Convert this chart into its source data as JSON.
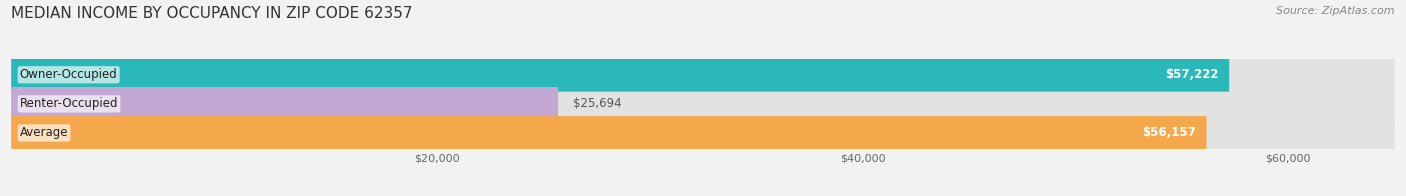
{
  "title": "MEDIAN INCOME BY OCCUPANCY IN ZIP CODE 62357",
  "source": "Source: ZipAtlas.com",
  "categories": [
    "Owner-Occupied",
    "Renter-Occupied",
    "Average"
  ],
  "values": [
    57222,
    25694,
    56157
  ],
  "bar_colors": [
    "#2ab8b8",
    "#c4a8d4",
    "#f5a84b"
  ],
  "value_labels": [
    "$57,222",
    "$25,694",
    "$56,157"
  ],
  "xlim": [
    0,
    65000
  ],
  "xticks": [
    20000,
    40000,
    60000
  ],
  "xtick_labels": [
    "$20,000",
    "$40,000",
    "$60,000"
  ],
  "bar_height": 0.58,
  "background_color": "#f2f2f2",
  "bar_bg_color": "#e2e2e2",
  "title_fontsize": 11,
  "source_fontsize": 8,
  "label_fontsize": 8.5,
  "value_fontsize": 8.5
}
